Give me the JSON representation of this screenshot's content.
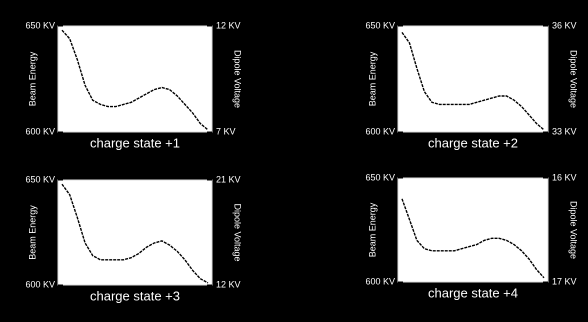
{
  "chart_data": [
    {
      "type": "line",
      "title": "charge state +1",
      "ylabel": "Beam Energy",
      "y2label": "Dipole Voltage",
      "ylim": [
        600,
        650
      ],
      "yticks": [
        {
          "value": 600,
          "label": "600 KV"
        },
        {
          "value": 650,
          "label": "650 KV"
        }
      ],
      "y2lim": [
        7,
        12
      ],
      "y2ticks": [
        {
          "value": 7,
          "label": "7 KV"
        },
        {
          "value": 12,
          "label": "12 KV"
        }
      ],
      "color": "#000000",
      "values": [
        648,
        644,
        634,
        622,
        615,
        613,
        612,
        612,
        613,
        614,
        616,
        618,
        620,
        621,
        620,
        617,
        613,
        609,
        604,
        601
      ]
    },
    {
      "type": "line",
      "title": "charge state +2",
      "ylabel": "Beam Energy",
      "y2label": "Dipole Voltage",
      "ylim": [
        600,
        650
      ],
      "yticks": [
        {
          "value": 600,
          "label": "600 KV"
        },
        {
          "value": 650,
          "label": "650 KV"
        }
      ],
      "y2lim": [
        33,
        36
      ],
      "y2ticks": [
        {
          "value": 33,
          "label": "33 KV"
        },
        {
          "value": 36,
          "label": "36 KV"
        }
      ],
      "color": "#000000",
      "values": [
        647,
        642,
        630,
        619,
        614,
        613,
        613,
        613,
        613,
        613,
        614,
        615,
        616,
        617,
        617,
        615,
        612,
        608,
        604,
        601
      ]
    },
    {
      "type": "line",
      "title": "charge state +3",
      "ylabel": "Beam Energy",
      "y2label": "Dipole Voltage",
      "ylim": [
        600,
        650
      ],
      "yticks": [
        {
          "value": 600,
          "label": "600 KV"
        },
        {
          "value": 650,
          "label": "650 KV"
        }
      ],
      "y2lim": [
        12,
        21
      ],
      "y2ticks": [
        {
          "value": 12,
          "label": "12 KV"
        },
        {
          "value": 21,
          "label": "21 KV"
        }
      ],
      "color": "#000000",
      "values": [
        648,
        643,
        632,
        620,
        614,
        612,
        612,
        612,
        612,
        613,
        615,
        618,
        620,
        621,
        619,
        616,
        612,
        607,
        603,
        601
      ]
    },
    {
      "type": "line",
      "title": "charge state +4",
      "ylabel": "Beam Energy",
      "y2label": "Dipole Voltage",
      "ylim": [
        600,
        650
      ],
      "yticks": [
        {
          "value": 600,
          "label": "600 KV"
        },
        {
          "value": 650,
          "label": "650 KV"
        }
      ],
      "y2lim": [
        17,
        16
      ],
      "y2ticks": [
        {
          "value": 17,
          "label": "17 KV"
        },
        {
          "value": 16,
          "label": "16 KV"
        }
      ],
      "color": "#000000",
      "values": [
        640,
        630,
        620,
        616,
        615,
        615,
        615,
        615,
        616,
        617,
        618,
        620,
        621,
        621,
        620,
        618,
        615,
        611,
        606,
        602
      ]
    }
  ]
}
